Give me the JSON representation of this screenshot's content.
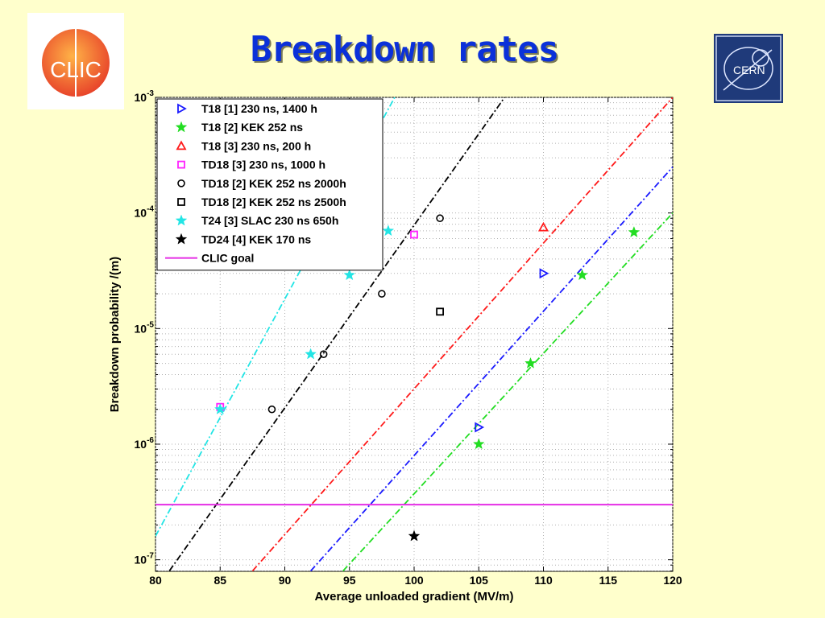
{
  "slide": {
    "title": "Breakdown rates",
    "logo_left_text": "CLIC",
    "logo_right_text": "CERN"
  },
  "chart_data": {
    "type": "scatter",
    "title": "",
    "xlabel": "Average unloaded gradient (MV/m)",
    "ylabel": "Breakdown probability /(m)",
    "xlim": [
      80,
      120
    ],
    "ylim_log10": [
      -7.1,
      -3
    ],
    "y_scale": "log",
    "x_ticks": [
      80,
      85,
      90,
      95,
      100,
      105,
      110,
      115,
      120
    ],
    "y_tick_exponents": [
      -7,
      -6,
      -5,
      -4,
      -3
    ],
    "y_tick_base": "10",
    "grid": true,
    "legend_position": "top-left",
    "series": [
      {
        "name": "T18 [1] 230 ns, 1400 h",
        "marker": "triangle-right",
        "color": "#1a1aff",
        "points": [
          [
            105,
            1.4e-06
          ],
          [
            110,
            3e-05
          ]
        ]
      },
      {
        "name": "T18 [2] KEK 252 ns",
        "marker": "star",
        "color": "#22dd22",
        "points": [
          [
            105,
            1e-06
          ],
          [
            109,
            5e-06
          ],
          [
            113,
            2.9e-05
          ],
          [
            117,
            6.8e-05
          ]
        ]
      },
      {
        "name": "T18 [3] 230 ns, 200 h",
        "marker": "triangle-up",
        "color": "#ff1a1a",
        "points": [
          [
            110,
            7.5e-05
          ]
        ]
      },
      {
        "name": "TD18 [3] 230 ns, 1000 h",
        "marker": "square",
        "color": "#ff22ff",
        "points": [
          [
            85,
            2.1e-06
          ],
          [
            100,
            6.5e-05
          ]
        ]
      },
      {
        "name": "TD18 [2] KEK 252 ns 2000h",
        "marker": "circle",
        "color": "#000000",
        "points": [
          [
            89,
            2e-06
          ],
          [
            93,
            6e-06
          ],
          [
            97.5,
            2e-05
          ],
          [
            102,
            9e-05
          ]
        ]
      },
      {
        "name": "TD18 [2] KEK 252 ns 2500h",
        "marker": "square",
        "color": "#000000",
        "points": [
          [
            102,
            1.4e-05
          ]
        ]
      },
      {
        "name": "T24 [3] SLAC 230 ns 650h",
        "marker": "star",
        "color": "#22e5e5",
        "points": [
          [
            85,
            2e-06
          ],
          [
            92,
            6e-06
          ],
          [
            95,
            2.9e-05
          ],
          [
            98,
            7e-05
          ]
        ]
      },
      {
        "name": "TD24 [4] KEK 170 ns",
        "marker": "star",
        "color": "#000000",
        "points": [
          [
            100,
            1.6e-07
          ]
        ]
      },
      {
        "name": "CLIC goal",
        "marker": "line",
        "color": "#e52ee5",
        "points": [
          [
            80,
            3e-07
          ],
          [
            120,
            3e-07
          ]
        ]
      }
    ],
    "fit_lines": [
      {
        "color": "#22e5e5",
        "points": [
          [
            80,
            1.6e-07
          ],
          [
            98.5,
            0.001
          ]
        ]
      },
      {
        "color": "#000000",
        "points": [
          [
            80.5,
            6.5e-08
          ],
          [
            107,
            0.001
          ]
        ]
      },
      {
        "color": "#ff1a1a",
        "points": [
          [
            87.5,
            8e-08
          ],
          [
            120,
            0.001
          ]
        ]
      },
      {
        "color": "#1a1aff",
        "points": [
          [
            92,
            8e-08
          ],
          [
            120,
            0.00025
          ]
        ]
      },
      {
        "color": "#22dd22",
        "points": [
          [
            94.5,
            8e-08
          ],
          [
            120,
            0.0001
          ]
        ]
      }
    ]
  }
}
